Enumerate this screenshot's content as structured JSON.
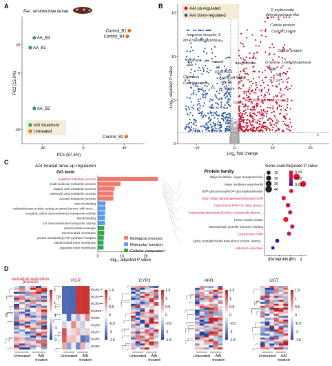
{
  "panel_labels": {
    "a": "A",
    "b": "B",
    "c": "C",
    "d": "D"
  },
  "panel_a": {
    "species": "Pac. aristolochiae larvae",
    "xlabel": "PC1 (67.5%)",
    "ylabel": "PC2 (15.9%)",
    "legend": [
      "AAI treatment",
      "Untreated"
    ],
    "colors": {
      "aai": "#2e9e5b",
      "untreated": "#e07020"
    },
    "chart_data": {
      "type": "scatter",
      "xlabel": "PC1 (67.5%)",
      "ylabel": "PC2 (15.9%)",
      "xlim": [
        -60,
        60
      ],
      "ylim": [
        -50,
        40
      ],
      "xticks": [
        -40,
        0,
        40
      ],
      "yticks": [
        -40,
        0,
        20
      ],
      "series": [
        {
          "name": "AAI treatment",
          "points": [
            {
              "label": "AA_B3",
              "x": -48,
              "y": 25
            },
            {
              "label": "AA_B1",
              "x": -52,
              "y": 18
            },
            {
              "label": "AA_B2",
              "x": -48,
              "y": -25
            }
          ]
        },
        {
          "name": "Untreated",
          "points": [
            {
              "label": "Control_B1",
              "x": 45,
              "y": 30
            },
            {
              "label": "Control_B4",
              "x": 43,
              "y": 26
            },
            {
              "label": "Control_B2",
              "x": 42,
              "y": -45
            }
          ]
        }
      ]
    }
  },
  "panel_b": {
    "legend": [
      "AAI up-regulated",
      "AAI down-regulated"
    ],
    "colors": {
      "up": "#c8102e",
      "down": "#2c5aa0",
      "ns": "#b0b0b0"
    },
    "xlabel_main": "Log",
    "xlabel_sub": "2",
    "xlabel_end": " fold change",
    "ylabel": "−Log₁₀ adjusted P value",
    "chart_data": {
      "type": "scatter",
      "xlim": [
        -15,
        25
      ],
      "ylim": [
        0,
        16
      ],
      "xticks": [
        -10,
        0,
        10,
        20
      ],
      "yticks": [
        0,
        5,
        10,
        15
      ],
      "thresholds": {
        "x": [
          -1,
          1
        ],
        "y": 1.3
      },
      "labels": [
        {
          "text": "D-erythronate dehydrogenase-like",
          "x": 13,
          "y": 15.2,
          "group": "up"
        },
        {
          "text": "Cuticle protein",
          "x": 12,
          "y": 14.5,
          "group": "up"
        },
        {
          "text": "Cuticle protein",
          "x": 13,
          "y": 13.6,
          "group": "up"
        },
        {
          "text": "hormone receptor 3",
          "x": -3,
          "y": 13,
          "group": "down"
        },
        {
          "text": "M14 metallopeptidase",
          "x": -4,
          "y": 11.7,
          "group": "down"
        },
        {
          "text": "Cuticle protein",
          "x": 4,
          "y": 9.6,
          "group": "up"
        },
        {
          "text": "Obscurin -like",
          "x": -5,
          "y": 8.8,
          "group": "down"
        },
        {
          "text": "vexed",
          "x": -3,
          "y": 8.7,
          "group": "down"
        },
        {
          "text": "daughterlike",
          "x": 1,
          "y": 8.5,
          "group": "up"
        },
        {
          "text": "D-xylose 1-dehydrogenase",
          "x": 8,
          "y": 9,
          "group": "up"
        },
        {
          "text": "Eglp",
          "x": 6,
          "y": 8,
          "group": "up"
        },
        {
          "text": "UGT",
          "x": 9,
          "y": 7.5,
          "group": "up"
        },
        {
          "text": "l(2)k05911",
          "x": -1,
          "y": 7,
          "group": "down"
        },
        {
          "text": "Chitinase",
          "x": -5,
          "y": 6.4,
          "group": "down"
        },
        {
          "text": "Acyl-CoA ligase",
          "x": 1,
          "y": 6.2,
          "group": "up"
        },
        {
          "text": "SLC22",
          "x": 5,
          "y": 6,
          "group": "up"
        },
        {
          "text": "SLC46",
          "x": 0.5,
          "y": 5.7,
          "group": "up"
        },
        {
          "text": "Cuticle protein",
          "x": -6,
          "y": 5.3,
          "group": "down"
        },
        {
          "text": "Swim",
          "x": -1,
          "y": 5,
          "group": "down"
        },
        {
          "text": "D2oa",
          "x": 2,
          "y": 5,
          "group": "up"
        },
        {
          "text": "CYP6B1",
          "x": 1,
          "y": 4.6,
          "group": "up"
        },
        {
          "text": "CYP4AU1-like",
          "x": 7,
          "y": 4.9,
          "group": "up"
        }
      ]
    },
    "point_labels": [
      "D-erythronate",
      "dehydrogenase-like",
      "Cuticle protein",
      "Cuticle protein",
      "hormone receptor 3",
      "M14 metallopeptidase",
      "Cuticle protein",
      "Obscurin",
      "-like",
      "vexed",
      "daughterlike",
      "D-xylose 1-dehydrogenase",
      "Eglp",
      "UGT",
      "l(2)k05911",
      "Chitinase",
      "Acyl-CoA ligase",
      "SLC22",
      "SLC46",
      "Cuticle protein",
      "Swim",
      "D2oa",
      "CYP6B1",
      "CYP4AU1-like"
    ]
  },
  "panel_c": {
    "title": "AAI treated larva up-regulation",
    "go_header": "GO term",
    "xlabel": "−log₁₀ adjusted P value",
    "go_terms": [
      {
        "label": "oxidation-reduction process",
        "value": 25,
        "cat": "bp"
      },
      {
        "label": "small molecule metabolic process",
        "value": 9.5,
        "cat": "bp"
      },
      {
        "label": "organic acid metabolic process",
        "value": 7,
        "cat": "bp"
      },
      {
        "label": "carboxylic acid metabolic process",
        "value": 6.5,
        "cat": "bp"
      },
      {
        "label": "oxoacid metabolic process",
        "value": 6.5,
        "cat": "bp"
      },
      {
        "label": "iron ion binding",
        "value": 3.2,
        "cat": "mf"
      },
      {
        "label": "oxidoreductase activity, acting on paired donors, with incorporation or reduction of molecular oxygen",
        "value": 3.2,
        "cat": "mf"
      },
      {
        "label": "inorganic cation transmembrane transporter activity",
        "value": 3,
        "cat": "mf"
      },
      {
        "label": "heme binding",
        "value": 3,
        "cat": "mf"
      },
      {
        "label": "ion transmembrane transporter activity",
        "value": 3,
        "cat": "mf"
      },
      {
        "label": "mitochondrial envelope",
        "value": 2.7,
        "cat": "cc"
      },
      {
        "label": "mitochondrial membrane",
        "value": 2.7,
        "cat": "cc"
      },
      {
        "label": "proton-transporting ATP synthase complex",
        "value": 2.5,
        "cat": "cc"
      },
      {
        "label": "mitochondrial inner membrane",
        "value": 2.4,
        "cat": "cc"
      },
      {
        "label": "organelle inner membrane",
        "value": 2.4,
        "cat": "cc"
      }
    ],
    "xticks": [
      0,
      10,
      20
    ],
    "xlim": [
      0,
      27
    ],
    "legend": [
      "Biological process",
      "Molecular function",
      "Cellular component"
    ],
    "cat_colors": {
      "bp": "#f07a6e",
      "mf": "#5b9bf0",
      "cc": "#2ea84a"
    },
    "pf_header": "Protein family",
    "families": [
      {
        "label": "Major facilitator, sugar transporter-like",
        "ratio": 3.6,
        "count": 35,
        "p": 0.03,
        "red": false
      },
      {
        "label": "Major facilitator superfamily",
        "ratio": 4.2,
        "count": 30,
        "p": 0.03,
        "red": false
      },
      {
        "label": "UDP-glucuronosyl/UDP-glucosyltransferase",
        "ratio": 3.1,
        "count": 10,
        "p": 0.03,
        "red": false
      },
      {
        "label": "Short-chain dehydrogenase/reductase SDR",
        "ratio": 2.4,
        "count": 12,
        "p": 0.03,
        "red": true
      },
      {
        "label": "Cytochrome P450, E-class, group I",
        "ratio": 2.8,
        "count": 14,
        "p": 0.03,
        "red": true
      },
      {
        "label": "Superoxide dismutase (Cu/Zn) / superoxide dismutase copper chaperone",
        "ratio": 3.0,
        "count": 12,
        "p": 0.025,
        "red": true
      },
      {
        "label": "Insect cuticle protein",
        "ratio": 2.6,
        "count": 20,
        "p": 0.028,
        "red": false
      },
      {
        "label": "Haemolymph juvenile hormone binding",
        "ratio": 3.2,
        "count": 12,
        "p": 0.02,
        "red": false
      },
      {
        "label": "Cytochrome P450",
        "ratio": 2.9,
        "count": 12,
        "p": 0.02,
        "red": true
      },
      {
        "label": "Alpha crystallin/Small heat shock protein, animal type",
        "ratio": 1.8,
        "count": 10,
        "p": 0.015,
        "red": false
      },
      {
        "label": "Aldo/keto reductase",
        "ratio": 1.4,
        "count": 6,
        "p": 0.01,
        "red": true
      }
    ],
    "gc_title": "Gene count",
    "gc_values": [
      "10",
      "20",
      "30",
      "40"
    ],
    "ap_title": "Adjusted P value",
    "ap_values": [
      "0.03",
      "0.02",
      "0.01"
    ],
    "ratio_xlabel": "Gene ratio (%)",
    "ratio_xticks": [
      "1",
      "2",
      "3",
      "4"
    ]
  },
  "panel_d": {
    "heatmaps": [
      {
        "title": "oxidation-reduction",
        "title2": "process",
        "title_red": true,
        "scale": [
          "2",
          "1",
          "0",
          "-1",
          "-2"
        ]
      },
      {
        "title": "PGR",
        "title2": "",
        "title_red": true,
        "scale": [
          "1.5",
          "1",
          "0.5",
          "0",
          "-0.5",
          "-1",
          "-1.5"
        ],
        "genes": [
          "PGR1***",
          "PGR2***",
          "PGR3***",
          "PGR10 *",
          "PGR4",
          "PGR9",
          "PGR7",
          "PGR5",
          "PGR6"
        ]
      },
      {
        "title": "CYP3",
        "title2": "",
        "title_red": false,
        "scale": [
          "1.5",
          "1",
          "0.5",
          "0",
          "-0.5",
          "-1",
          "-1.5"
        ]
      },
      {
        "title": "AKR",
        "title2": "",
        "title_red": false,
        "scale": [
          "1.5",
          "1",
          "0.5",
          "0",
          "-0.5",
          "-1",
          "-1.5"
        ]
      },
      {
        "title": "UGT",
        "title2": "",
        "title_red": false,
        "scale": [
          "1.5",
          "1",
          "0.5",
          "0",
          "-0.5",
          "-1",
          "-1.5"
        ]
      }
    ],
    "xlabel_untreated": "Untreated",
    "xlabel_aai": "AAI",
    "xlabel_treated": "treated"
  }
}
